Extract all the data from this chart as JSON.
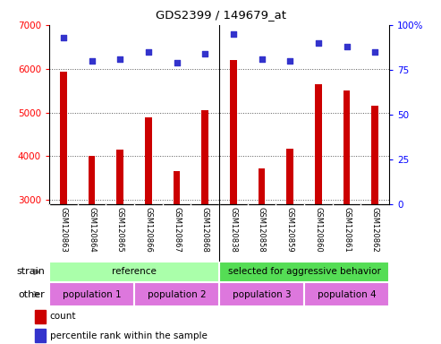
{
  "title": "GDS2399 / 149679_at",
  "samples": [
    "GSM120863",
    "GSM120864",
    "GSM120865",
    "GSM120866",
    "GSM120867",
    "GSM120868",
    "GSM120838",
    "GSM120858",
    "GSM120859",
    "GSM120860",
    "GSM120861",
    "GSM120862"
  ],
  "counts": [
    5930,
    4000,
    4150,
    4880,
    3650,
    5050,
    6200,
    3720,
    4180,
    5640,
    5500,
    5150
  ],
  "percentiles": [
    93,
    80,
    81,
    85,
    79,
    84,
    95,
    81,
    80,
    90,
    88,
    85
  ],
  "ylim_left": [
    2900,
    7000
  ],
  "ylim_right": [
    0,
    100
  ],
  "yticks_left": [
    3000,
    4000,
    5000,
    6000,
    7000
  ],
  "yticks_right": [
    0,
    25,
    50,
    75,
    100
  ],
  "bar_color": "#cc0000",
  "dot_color": "#3333cc",
  "strain_labels": [
    "reference",
    "selected for aggressive behavior"
  ],
  "strain_colors": [
    "#aaffaa",
    "#55dd55"
  ],
  "other_labels": [
    "population 1",
    "population 2",
    "population 3",
    "population 4"
  ],
  "other_color": "#dd77dd",
  "legend_count_label": "count",
  "legend_pct_label": "percentile rank within the sample",
  "plot_bg": "#ffffff",
  "tick_label_bg": "#dddddd",
  "grid_color": "#555555"
}
